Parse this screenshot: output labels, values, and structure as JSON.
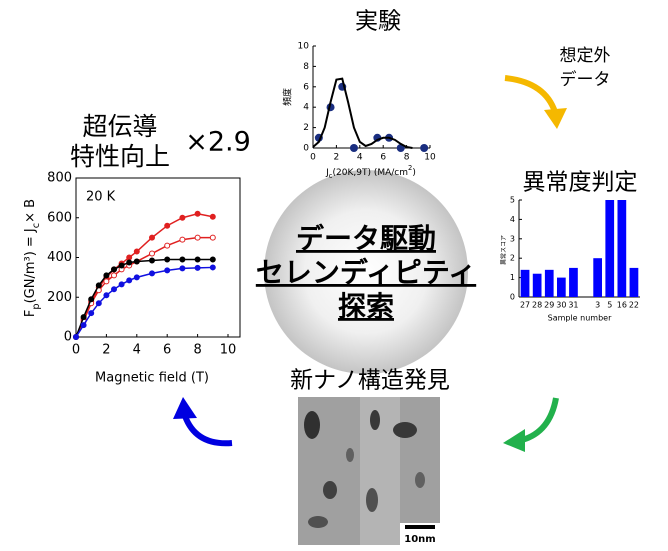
{
  "labels": {
    "experiment": "実験",
    "unexpected": [
      "想定外",
      "データ"
    ],
    "anomaly": "異常度判定",
    "discovery": "新ナノ構造発見",
    "improvement": [
      "超伝導",
      "特性向上"
    ],
    "factor": "×2.9",
    "center": [
      "データ駆動",
      "セレンディピティ",
      "探索"
    ],
    "scale_bar": "10nm"
  },
  "chart_data": [
    {
      "type": "scatter",
      "y_label": "頻度",
      "x_label": [
        {
          "text": "J"
        },
        {
          "text": "c",
          "sub": true
        },
        {
          "text": "(20K,9T) (MA/cm"
        },
        {
          "text": "2",
          "sup": true
        },
        {
          "text": ")"
        }
      ],
      "xlim": [
        0,
        10
      ],
      "xticks": [
        0,
        2,
        4,
        6,
        8,
        10
      ],
      "ylim": [
        0,
        10
      ],
      "yticks": [
        0,
        2,
        4,
        6,
        8,
        10
      ],
      "series": [
        {
          "color": "#1a2e80",
          "marker": "filled",
          "x": [
            0.5,
            1.5,
            2.5,
            3.5,
            5.5,
            6.5,
            7.5,
            9.5
          ],
          "values": [
            1,
            4,
            6,
            0,
            1,
            1,
            0,
            0
          ]
        },
        {
          "color": "#000000",
          "line": true,
          "x": [
            0,
            0.5,
            1,
            1.5,
            2,
            2.5,
            3,
            3.5,
            4,
            4.5,
            5,
            5.5,
            6,
            6.5,
            7,
            7.5,
            8,
            8.5
          ],
          "values": [
            0.1,
            0.6,
            2,
            4.5,
            6.7,
            6.8,
            4.5,
            2,
            0.6,
            0.2,
            0.4,
            0.8,
            1,
            1,
            0.8,
            0.4,
            0.1,
            0
          ]
        }
      ]
    },
    {
      "type": "bar",
      "y_label": "異常スコア",
      "x_label": "Sample number",
      "categories": [
        "27",
        "28",
        "29",
        "30",
        "31",
        null,
        "3",
        "5",
        "16",
        "22"
      ],
      "values": [
        1.4,
        1.2,
        1.4,
        1.0,
        1.5,
        null,
        2.0,
        5,
        5,
        1.5
      ],
      "color": "#0000ff",
      "ylim": [
        0,
        5
      ],
      "yticks": [
        0,
        1,
        2,
        3,
        4,
        5
      ]
    },
    {
      "type": "line",
      "annotation": "20 K",
      "x_label": "Magnetic field (T)",
      "y_label": [
        {
          "text": "F"
        },
        {
          "text": "p",
          "sub": true
        },
        {
          "text": "(GN/m³) = J"
        },
        {
          "text": "c",
          "sub": true
        },
        {
          "text": "× B"
        }
      ],
      "xlim": [
        0,
        10
      ],
      "xticks": [
        0,
        2,
        4,
        6,
        8,
        10
      ],
      "ylim": [
        0,
        800
      ],
      "yticks": [
        0,
        200,
        400,
        600,
        800
      ],
      "x": [
        0,
        0.5,
        1,
        1.5,
        2,
        2.5,
        3,
        3.5,
        4,
        5,
        6,
        7,
        8,
        9
      ],
      "series": [
        {
          "color": "#e02020",
          "marker": "filled",
          "values": [
            0,
            90,
            180,
            250,
            300,
            340,
            370,
            400,
            430,
            500,
            560,
            600,
            620,
            605
          ]
        },
        {
          "color": "#e02020",
          "marker": "open",
          "values": [
            0,
            80,
            170,
            235,
            280,
            310,
            340,
            360,
            380,
            420,
            460,
            490,
            500,
            500
          ]
        },
        {
          "color": "#000000",
          "marker": "filled",
          "values": [
            0,
            100,
            190,
            260,
            310,
            340,
            360,
            375,
            380,
            385,
            390,
            390,
            390,
            390
          ]
        },
        {
          "color": "#1010e0",
          "marker": "filled",
          "values": [
            0,
            60,
            120,
            170,
            210,
            240,
            265,
            285,
            300,
            320,
            335,
            345,
            348,
            350
          ]
        }
      ]
    }
  ]
}
